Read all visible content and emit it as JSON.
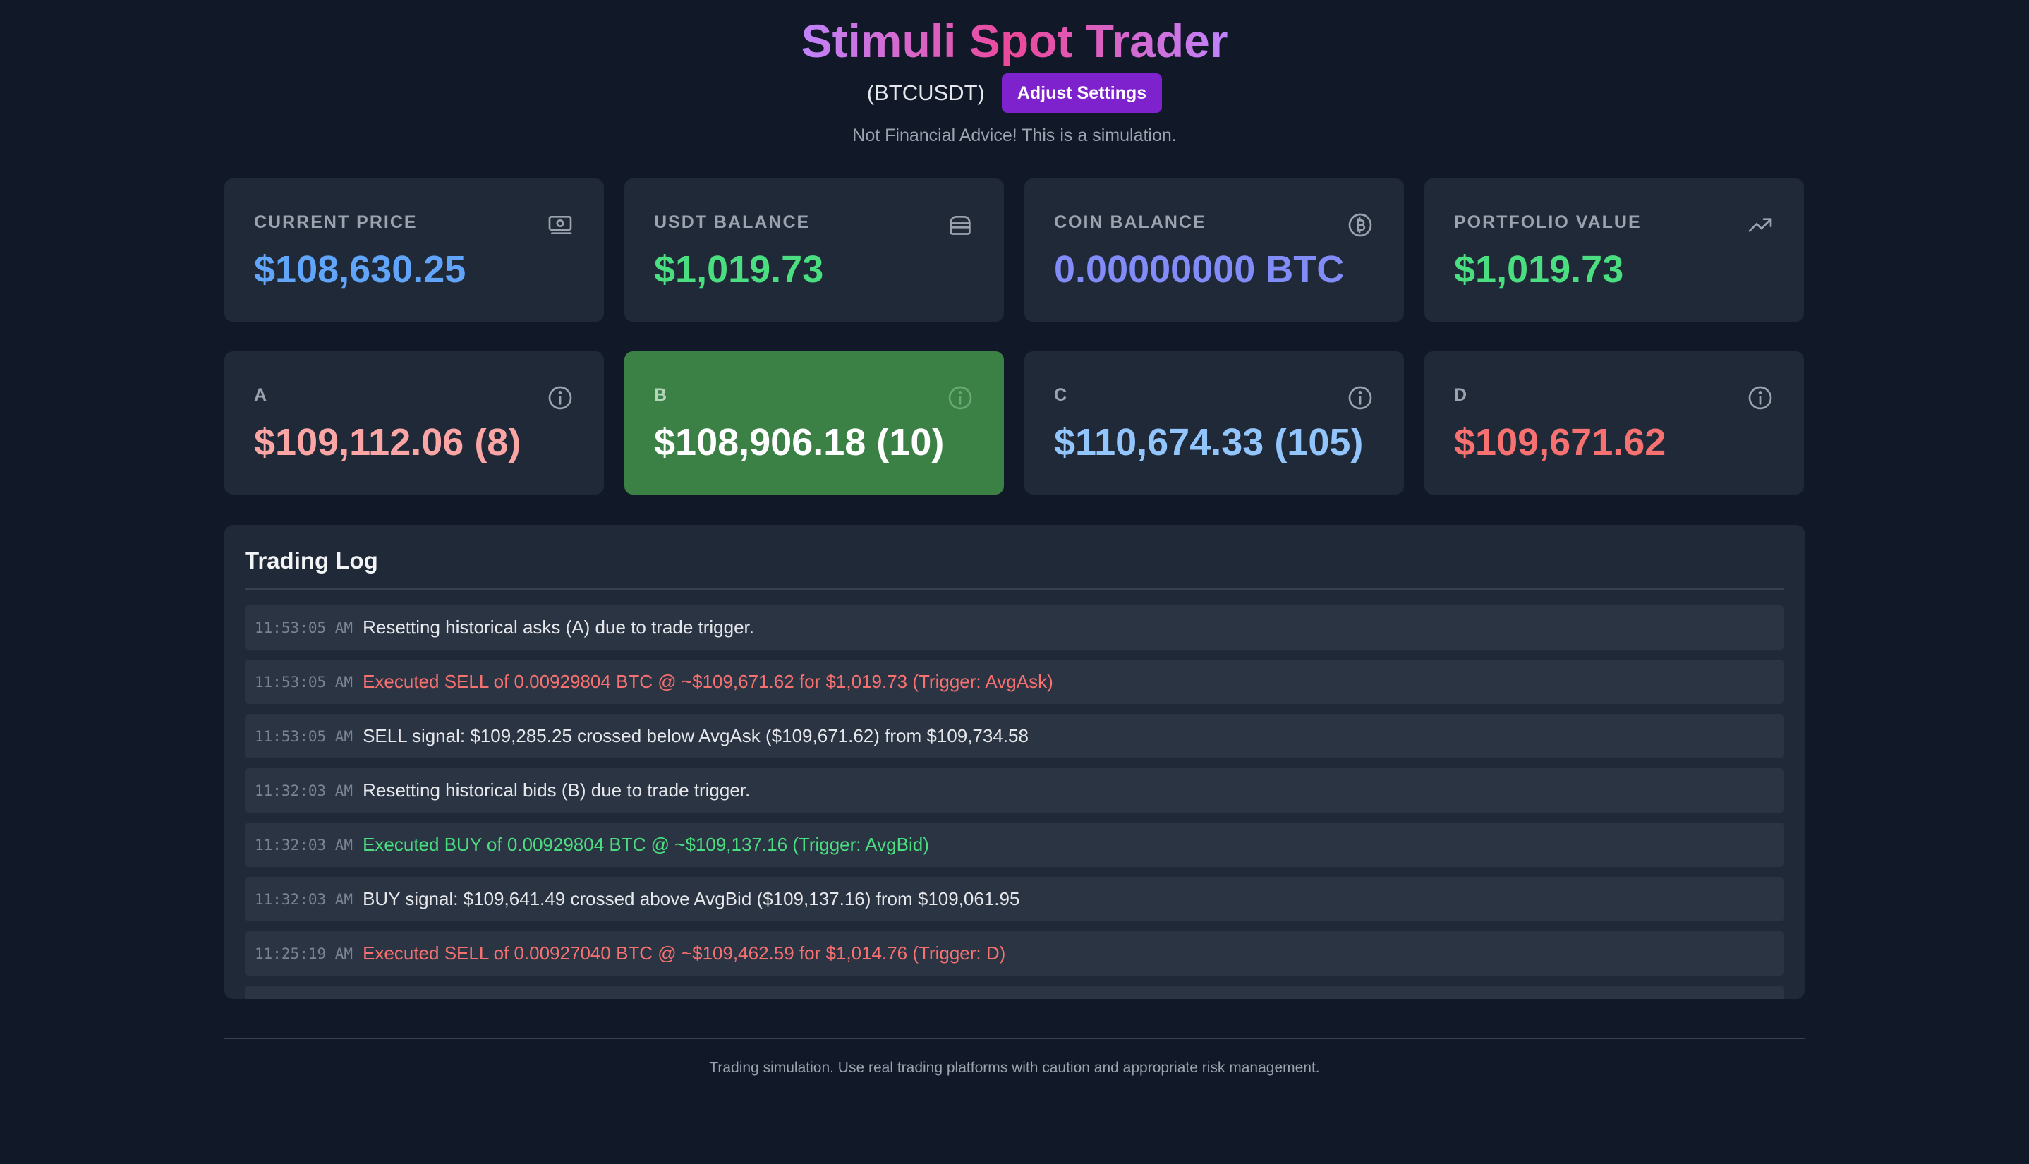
{
  "header": {
    "title": "Stimuli Spot Trader",
    "symbol": "(BTCUSDT)",
    "settings_label": "Adjust Settings",
    "disclaimer": "Not Financial Advice! This is a simulation."
  },
  "stats": [
    {
      "label": "CURRENT PRICE",
      "value": "$108,630.25",
      "icon": "money-icon",
      "color": "#60a5fa"
    },
    {
      "label": "USDT BALANCE",
      "value": "$1,019.73",
      "icon": "wallet-icon",
      "color": "#4ade80"
    },
    {
      "label": "COIN BALANCE",
      "value": "0.00000000 BTC",
      "icon": "bitcoin-icon",
      "color": "#818cf8"
    },
    {
      "label": "PORTFOLIO VALUE",
      "value": "$1,019.73",
      "icon": "trending-up-icon",
      "color": "#4ade80"
    }
  ],
  "indicators": [
    {
      "label": "A",
      "value": "$109,112.06 (8)",
      "icon": "info-icon",
      "color": "#fca5a5",
      "active": false
    },
    {
      "label": "B",
      "value": "$108,906.18 (10)",
      "icon": "info-icon",
      "color": "#ffffff",
      "active": true,
      "bg": "#3b8045"
    },
    {
      "label": "C",
      "value": "$110,674.33 (105)",
      "icon": "info-icon",
      "color": "#93c5fd",
      "active": false
    },
    {
      "label": "D",
      "value": "$109,671.62",
      "icon": "info-icon",
      "color": "#f87171",
      "active": false
    }
  ],
  "log": {
    "title": "Trading Log",
    "entries": [
      {
        "time": "11:53:05 AM",
        "message": "Resetting historical asks (A) due to trade trigger.",
        "kind": "info"
      },
      {
        "time": "11:53:05 AM",
        "message": "Executed SELL of 0.00929804 BTC @ ~$109,671.62 for $1,019.73 (Trigger: AvgAsk)",
        "kind": "sell"
      },
      {
        "time": "11:53:05 AM",
        "message": "SELL signal: $109,285.25 crossed below AvgAsk ($109,671.62) from $109,734.58",
        "kind": "info"
      },
      {
        "time": "11:32:03 AM",
        "message": "Resetting historical bids (B) due to trade trigger.",
        "kind": "info"
      },
      {
        "time": "11:32:03 AM",
        "message": "Executed BUY of 0.00929804 BTC @ ~$109,137.16 (Trigger: AvgBid)",
        "kind": "buy"
      },
      {
        "time": "11:32:03 AM",
        "message": "BUY signal: $109,641.49 crossed above AvgBid ($109,137.16) from $109,061.95",
        "kind": "info"
      },
      {
        "time": "11:25:19 AM",
        "message": "Executed SELL of 0.00927040 BTC @ ~$109,462.59 for $1,014.76 (Trigger: D)",
        "kind": "sell"
      }
    ]
  },
  "footer": {
    "text": "Trading simulation. Use real trading platforms with caution and appropriate risk management."
  }
}
